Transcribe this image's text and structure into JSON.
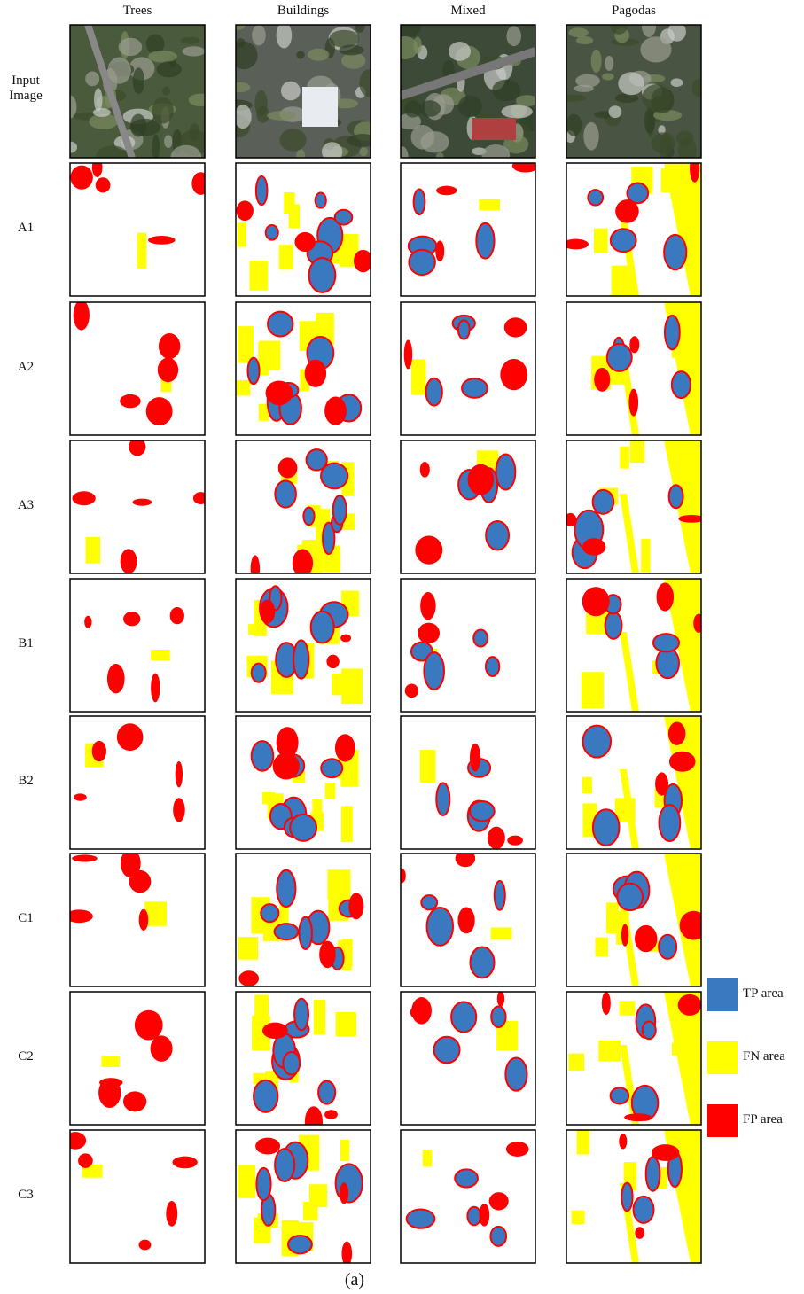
{
  "columns": [
    "Trees",
    "Buildings",
    "Mixed",
    "Pagodas"
  ],
  "rows": [
    "Input Image",
    "A1",
    "A2",
    "A3",
    "B1",
    "B2",
    "C1",
    "C2",
    "C3"
  ],
  "legend": [
    {
      "label": "TP area",
      "color": "#3a78c0"
    },
    {
      "label": "FN area",
      "color": "#ffff00"
    },
    {
      "label": "FP area",
      "color": "#ff0000"
    }
  ],
  "caption": "(a)"
}
